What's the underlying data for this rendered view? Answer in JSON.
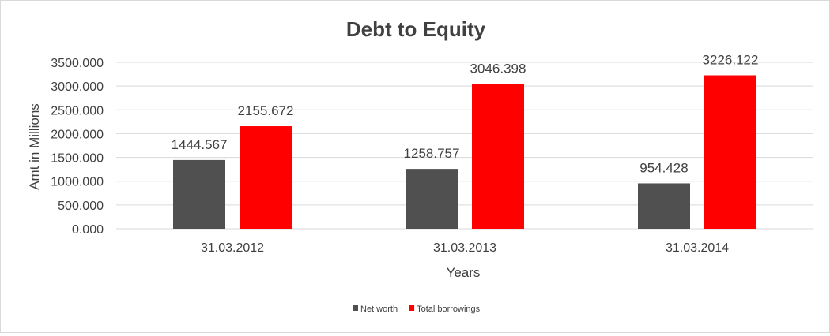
{
  "chart_data": {
    "type": "bar",
    "title": "Debt to Equity",
    "xlabel": "Years",
    "ylabel": "Amt in Millions",
    "categories": [
      "31.03.2012",
      "31.03.2013",
      "31.03.2014"
    ],
    "series": [
      {
        "name": "Net worth",
        "color": "#505050",
        "values": [
          1444.567,
          1258.757,
          954.428
        ],
        "labels": [
          "1444.567",
          "1258.757",
          "954.428"
        ]
      },
      {
        "name": "Total borrowings",
        "color": "#ff0000",
        "values": [
          2155.672,
          3046.398,
          3226.122
        ],
        "labels": [
          "2155.672",
          "3046.398",
          "3226.122"
        ]
      }
    ],
    "ylim": [
      0,
      3500
    ],
    "yticks": [
      0,
      500,
      1000,
      1500,
      2000,
      2500,
      3000,
      3500
    ],
    "ytick_labels": [
      "0.000",
      "500.000",
      "1000.000",
      "1500.000",
      "2000.000",
      "2500.000",
      "3000.000",
      "3500.000"
    ],
    "grid": true,
    "legend_position": "bottom"
  }
}
